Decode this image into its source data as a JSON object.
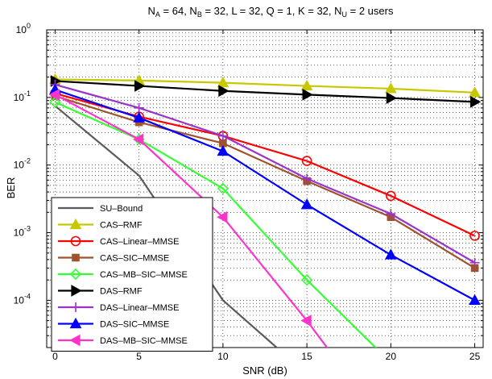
{
  "chart_data": {
    "type": "line",
    "title": "N_A = 64, N_B = 32, L = 32, Q = 1, K = 32, N_U = 2 users",
    "title_parts": {
      "a_main": "N",
      "a_sub": "A",
      "a_val": " = 64, ",
      "b_main": "N",
      "b_sub": "B",
      "b_val": " = 32, L = 32, Q = 1, K = 32, ",
      "u_main": "N",
      "u_sub": "U",
      "u_val": " = 2 users"
    },
    "xlabel": "SNR (dB)",
    "ylabel": "BER",
    "xlim": [
      -0.5,
      25.5
    ],
    "ylim": [
      2e-05,
      1
    ],
    "yscale": "log",
    "grid": true,
    "legend_position": "bottom-left",
    "x_ticks": [
      "0",
      "5",
      "10",
      "15",
      "20",
      "25"
    ],
    "y_ticks": [
      {
        "base": "10",
        "exp": "0",
        "value": 1
      },
      {
        "base": "10",
        "exp": "-1",
        "value": 0.1
      },
      {
        "base": "10",
        "exp": "-2",
        "value": 0.01
      },
      {
        "base": "10",
        "exp": "-3",
        "value": 0.001
      },
      {
        "base": "10",
        "exp": "-4",
        "value": 0.0001
      }
    ],
    "series": [
      {
        "name": "SU–Bound",
        "color": "#5a5a5a",
        "marker": "none",
        "x": [
          0,
          5,
          10,
          13.2
        ],
        "y": [
          0.075,
          0.007,
          0.0001,
          2e-05
        ]
      },
      {
        "name": "CAS–RMF",
        "color": "#c8c800",
        "marker": "triangle-up",
        "x": [
          0,
          5,
          10,
          15,
          20,
          25
        ],
        "y": [
          0.185,
          0.178,
          0.165,
          0.148,
          0.135,
          0.118
        ]
      },
      {
        "name": "CAS–Linear–MMSE",
        "color": "#ff0000",
        "marker": "circle",
        "x": [
          0,
          5,
          10,
          15,
          20,
          25
        ],
        "y": [
          0.115,
          0.052,
          0.027,
          0.0115,
          0.0035,
          0.0009
        ]
      },
      {
        "name": "CAS–SIC–MMSE",
        "color": "#a0522d",
        "marker": "square",
        "x": [
          0,
          5,
          10,
          15,
          20,
          25
        ],
        "y": [
          0.105,
          0.043,
          0.021,
          0.0058,
          0.0017,
          0.0003
        ]
      },
      {
        "name": "CAS–MB–SIC–MMSE",
        "color": "#33ff33",
        "marker": "diamond",
        "x": [
          0,
          5,
          10,
          15,
          20
        ],
        "y": [
          0.085,
          0.024,
          0.0045,
          0.0002,
          1.2e-05
        ]
      },
      {
        "name": "DAS–RMF",
        "color": "#000000",
        "marker": "triangle-right",
        "x": [
          0,
          5,
          10,
          15,
          20,
          25
        ],
        "y": [
          0.175,
          0.148,
          0.125,
          0.11,
          0.098,
          0.086
        ]
      },
      {
        "name": "DAS–Linear–MMSE",
        "color": "#9933cc",
        "marker": "plus",
        "x": [
          0,
          5,
          10,
          15,
          20,
          25
        ],
        "y": [
          0.155,
          0.07,
          0.027,
          0.0063,
          0.0019,
          0.00036
        ]
      },
      {
        "name": "DAS–SIC–MMSE",
        "color": "#0000ff",
        "marker": "triangle-up",
        "x": [
          0,
          5,
          10,
          15,
          20,
          25
        ],
        "y": [
          0.13,
          0.05,
          0.016,
          0.0026,
          0.00047,
          0.0001
        ]
      },
      {
        "name": "DAS–MB–SIC–MMSE",
        "color": "#ff33cc",
        "marker": "triangle-left",
        "x": [
          0,
          5,
          10,
          15,
          17.4
        ],
        "y": [
          0.11,
          0.024,
          0.0017,
          5e-05,
          8e-06
        ]
      }
    ]
  }
}
